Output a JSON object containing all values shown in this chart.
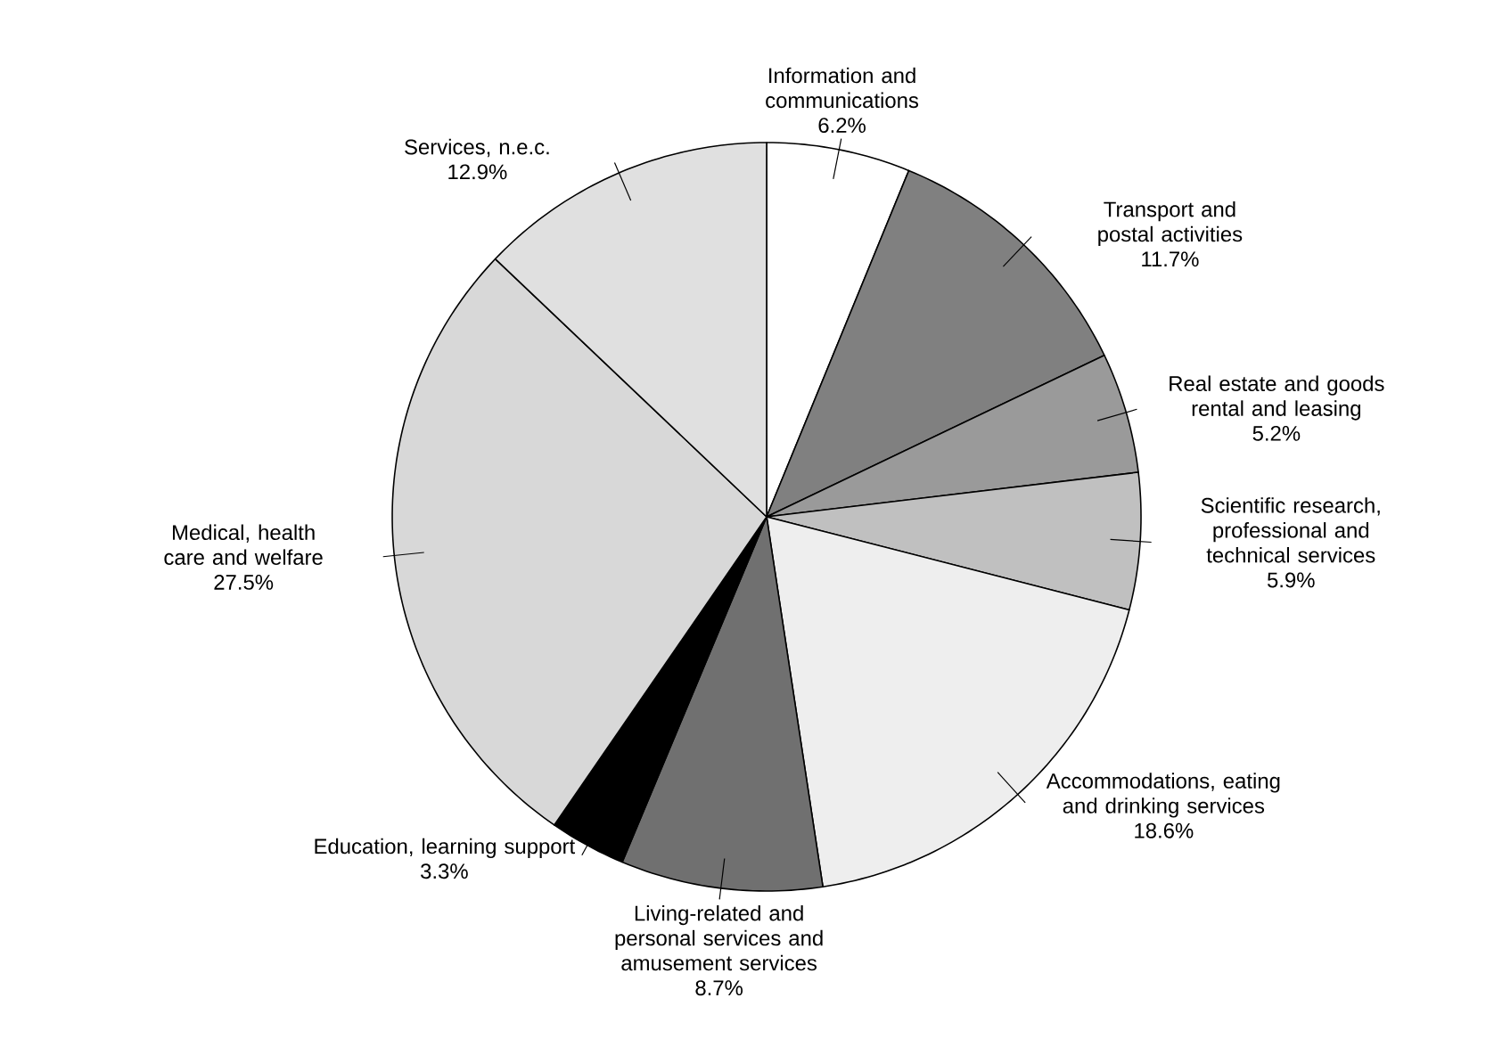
{
  "chart_data": {
    "type": "pie",
    "categories": [
      "Information and communications",
      "Transport and postal activities",
      "Real estate and goods rental and leasing",
      "Scientific research, professional and technical services",
      "Accommodations, eating and drinking services",
      "Living-related and personal services and amusement services",
      "Education, learning support",
      "Medical, health care and welfare",
      "Services, n.e.c."
    ],
    "values": [
      6.2,
      11.7,
      5.2,
      5.9,
      18.6,
      8.7,
      3.3,
      27.5,
      12.9
    ],
    "value_labels": [
      "6.2%",
      "11.7%",
      "5.2%",
      "5.9%",
      "18.6%",
      "8.7%",
      "3.3%",
      "27.5%",
      "12.9%"
    ],
    "colors": [
      "#ffffff",
      "#808080",
      "#9a9a9a",
      "#c0c0c0",
      "#eeeeee",
      "#707070",
      "#000000",
      "#d8d8d8",
      "#e0e0e0"
    ]
  }
}
